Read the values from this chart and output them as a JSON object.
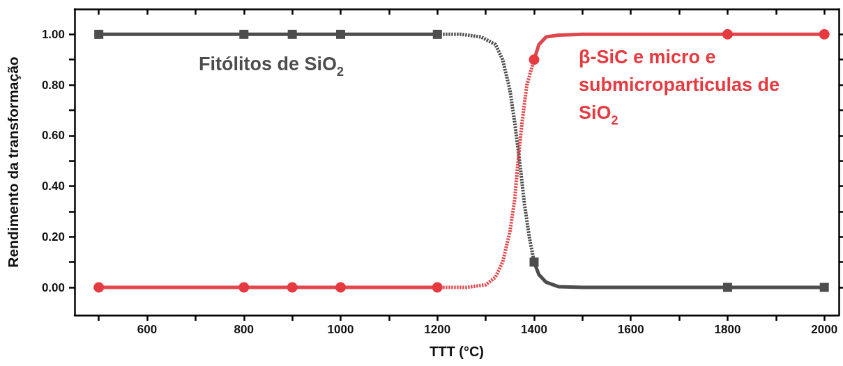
{
  "chart_data": {
    "type": "line",
    "xlabel": "TTT (°C)",
    "ylabel": "Rendimento da transformação",
    "xlim": [
      450,
      2030
    ],
    "xticks": [
      {
        "value": 500,
        "label": null
      },
      600,
      {
        "value": 700,
        "label": null
      },
      800,
      {
        "value": 900,
        "label": null
      },
      1000,
      {
        "value": 1100,
        "label": null
      },
      1200,
      {
        "value": 1300,
        "label": null
      },
      1400,
      {
        "value": 1500,
        "label": null
      },
      1600,
      {
        "value": 1700,
        "label": null
      },
      1800,
      {
        "value": 1900,
        "label": null
      },
      2000
    ],
    "ylim": [
      -0.11,
      1.1
    ],
    "yticks": [
      {
        "value": 0,
        "label": "0.00"
      },
      {
        "value": 0.1,
        "label": null
      },
      {
        "value": 0.2,
        "label": "0.20"
      },
      {
        "value": 0.3,
        "label": null
      },
      {
        "value": 0.4,
        "label": "0.40"
      },
      {
        "value": 0.5,
        "label": null
      },
      {
        "value": 0.6,
        "label": "0.60"
      },
      {
        "value": 0.7,
        "label": null
      },
      {
        "value": 0.8,
        "label": "0.80"
      },
      {
        "value": 0.9,
        "label": null
      },
      {
        "value": 1,
        "label": "1.00"
      }
    ],
    "grid": false,
    "legend": false,
    "series": [
      {
        "color": "#4d4d4d",
        "line_style": "solid",
        "marker": "none",
        "x": [
          500,
          1200
        ],
        "values": [
          1,
          1
        ]
      },
      {
        "color": "#4d4d4d",
        "line_style": "dashed",
        "marker": "none",
        "x": [
          1200,
          1250,
          1290,
          1320,
          1335,
          1350,
          1360,
          1370,
          1380,
          1390,
          1400
        ],
        "values": [
          1,
          1,
          0.99,
          0.96,
          0.9,
          0.78,
          0.65,
          0.5,
          0.33,
          0.2,
          0.1
        ]
      },
      {
        "color": "#4d4d4d",
        "line_style": "solid",
        "marker": "none",
        "x": [
          1400,
          1410,
          1425,
          1450,
          1500,
          2000
        ],
        "values": [
          0.1,
          0.05,
          0.02,
          0.003,
          0,
          0
        ]
      },
      {
        "type": "scatter",
        "name": "Fitólitos de SiO$_{2}$",
        "color": "#4d4d4d",
        "marker": "square",
        "x": [
          500,
          800,
          900,
          1000,
          1200,
          1400,
          1800,
          2000
        ],
        "values": [
          1,
          1,
          1,
          1,
          1,
          0.1,
          0,
          0
        ]
      },
      {
        "color": "#e0474c",
        "line_style": "solid",
        "marker": "none",
        "x": [
          500,
          1200
        ],
        "values": [
          0,
          0
        ]
      },
      {
        "color": "#e0474c",
        "line_style": "dashed",
        "marker": "none",
        "x": [
          1200,
          1260,
          1300,
          1320,
          1335,
          1350,
          1360,
          1367,
          1375,
          1385,
          1400
        ],
        "values": [
          0,
          0,
          0.01,
          0.04,
          0.1,
          0.22,
          0.35,
          0.5,
          0.65,
          0.8,
          0.9
        ]
      },
      {
        "color": "#e0474c",
        "line_style": "solid",
        "marker": "none",
        "x": [
          1400,
          1410,
          1425,
          1450,
          1500,
          2000
        ],
        "values": [
          0.9,
          0.96,
          0.99,
          0.997,
          1,
          1
        ]
      },
      {
        "type": "scatter",
        "name": "β-SiC e micro e submicroparticulas de SiO$_{2}$",
        "color": "#e53a3f",
        "marker": "circle",
        "x": [
          500,
          800,
          900,
          1000,
          1200,
          1400,
          1800,
          2000
        ],
        "values": [
          0,
          0,
          0,
          0,
          0,
          0.9,
          1,
          1
        ]
      }
    ]
  }
}
